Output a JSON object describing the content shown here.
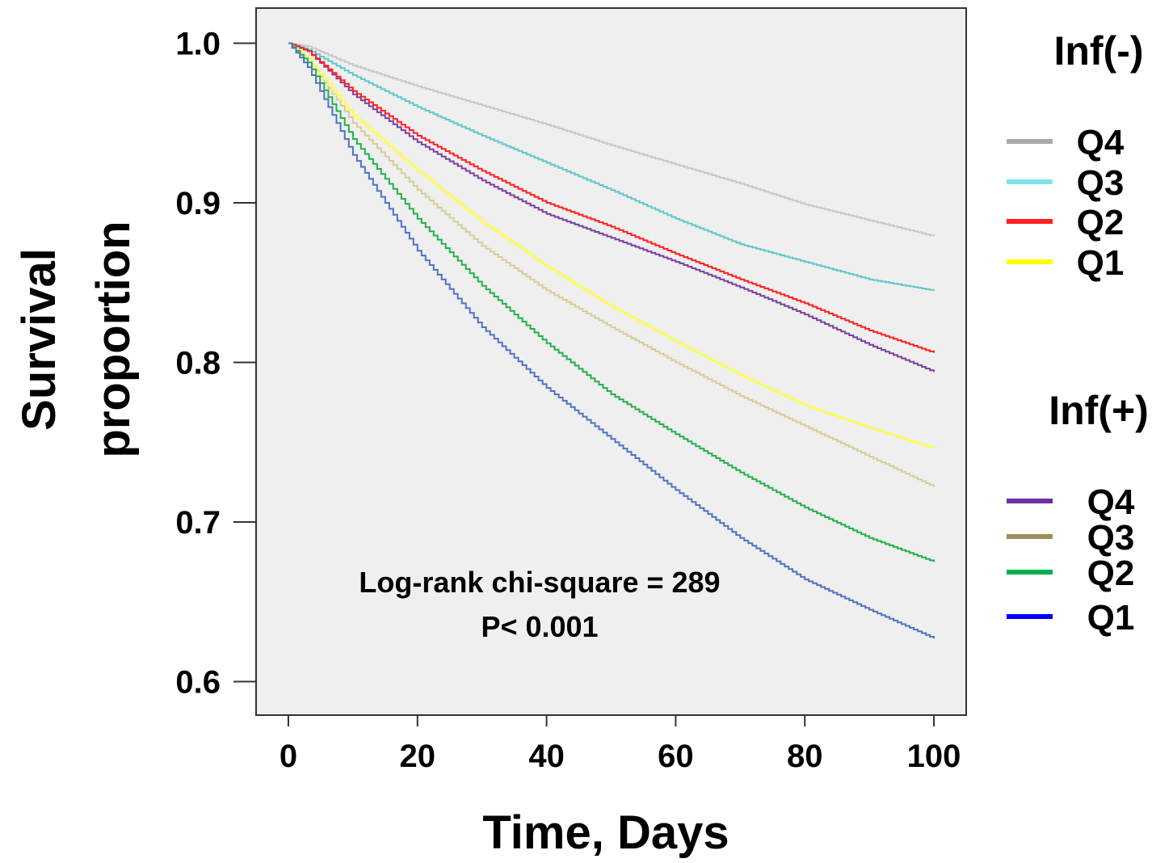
{
  "chart_data": {
    "type": "line",
    "step": true,
    "xlabel": "Time, Days",
    "ylabel_lines": [
      "Survival",
      "proportion"
    ],
    "xlim": [
      -5,
      105
    ],
    "ylim": [
      0.579,
      1.022
    ],
    "xticks": [
      0,
      20,
      40,
      60,
      80,
      100
    ],
    "yticks": [
      0.6,
      0.7,
      0.8,
      0.9,
      1.0
    ],
    "xtick_labels": [
      "0",
      "20",
      "40",
      "60",
      "80",
      "100"
    ],
    "ytick_labels": [
      "0.6",
      "0.7",
      "0.8",
      "0.9",
      "1.0"
    ],
    "annotation": [
      "Log-rank chi-square = 289",
      "P< 0.001"
    ],
    "grid": false,
    "background": "#efefef",
    "legend_groups": [
      {
        "title": "Inf(-)",
        "entries": [
          {
            "label": "Q4",
            "series": 0
          },
          {
            "label": "Q3",
            "series": 1
          },
          {
            "label": "Q2",
            "series": 2
          },
          {
            "label": "Q1",
            "series": 3
          }
        ]
      },
      {
        "title": "Inf(+)",
        "entries": [
          {
            "label": "Q4",
            "series": 4
          },
          {
            "label": "Q3",
            "series": 5
          },
          {
            "label": "Q2",
            "series": 6
          },
          {
            "label": "Q1",
            "series": 7
          }
        ]
      }
    ],
    "series": [
      {
        "group": "Inf(-)",
        "name": "Q4",
        "color": "#c8c8c8",
        "legend_color": "#a8a8a8",
        "x": [
          0,
          3,
          10,
          20,
          30,
          40,
          50,
          60,
          70,
          80,
          90,
          100
        ],
        "y": [
          1.0,
          0.998,
          0.986,
          0.973,
          0.961,
          0.949,
          0.936,
          0.924,
          0.912,
          0.899,
          0.889,
          0.879
        ]
      },
      {
        "group": "Inf(-)",
        "name": "Q3",
        "color": "#5ec8cc",
        "legend_color": "#7fe5ea",
        "x": [
          0,
          3,
          10,
          20,
          30,
          40,
          50,
          60,
          70,
          80,
          90,
          100
        ],
        "y": [
          1.0,
          0.996,
          0.98,
          0.96,
          0.942,
          0.925,
          0.908,
          0.89,
          0.874,
          0.863,
          0.852,
          0.845
        ]
      },
      {
        "group": "Inf(-)",
        "name": "Q2",
        "color": "#ff2020",
        "legend_color": "#ff2020",
        "x": [
          0,
          3,
          10,
          20,
          30,
          40,
          50,
          60,
          70,
          80,
          90,
          100
        ],
        "y": [
          1.0,
          0.995,
          0.97,
          0.942,
          0.92,
          0.9,
          0.885,
          0.868,
          0.852,
          0.837,
          0.82,
          0.806
        ]
      },
      {
        "group": "Inf(-)",
        "name": "Q1",
        "color": "#ffff40",
        "legend_color": "#ffff00",
        "x": [
          0,
          3,
          10,
          20,
          30,
          40,
          50,
          60,
          70,
          80,
          90,
          100
        ],
        "y": [
          1.0,
          0.99,
          0.955,
          0.92,
          0.888,
          0.86,
          0.835,
          0.813,
          0.792,
          0.773,
          0.759,
          0.746
        ]
      },
      {
        "group": "Inf(+)",
        "name": "Q4",
        "color": "#7b3fa0",
        "legend_color": "#7030a0",
        "x": [
          0,
          3,
          10,
          20,
          30,
          40,
          50,
          60,
          70,
          80,
          90,
          100
        ],
        "y": [
          1.0,
          0.995,
          0.968,
          0.938,
          0.914,
          0.893,
          0.878,
          0.863,
          0.847,
          0.83,
          0.811,
          0.794
        ]
      },
      {
        "group": "Inf(+)",
        "name": "Q3",
        "color": "#d8cc96",
        "legend_color": "#9e8e5a",
        "x": [
          0,
          3,
          10,
          20,
          30,
          40,
          50,
          60,
          70,
          80,
          90,
          100
        ],
        "y": [
          1.0,
          0.99,
          0.95,
          0.908,
          0.873,
          0.845,
          0.822,
          0.8,
          0.779,
          0.76,
          0.741,
          0.722
        ]
      },
      {
        "group": "Inf(+)",
        "name": "Q2",
        "color": "#22b04a",
        "legend_color": "#00b050",
        "x": [
          0,
          3,
          10,
          20,
          30,
          40,
          50,
          60,
          70,
          80,
          90,
          100
        ],
        "y": [
          1.0,
          0.988,
          0.94,
          0.89,
          0.848,
          0.812,
          0.78,
          0.755,
          0.731,
          0.709,
          0.69,
          0.675
        ]
      },
      {
        "group": "Inf(+)",
        "name": "Q1",
        "color": "#4f72c4",
        "legend_color": "#0000ff",
        "x": [
          0,
          3,
          10,
          20,
          30,
          40,
          50,
          60,
          70,
          80,
          90,
          100
        ],
        "y": [
          1.0,
          0.985,
          0.93,
          0.87,
          0.822,
          0.784,
          0.752,
          0.72,
          0.69,
          0.664,
          0.645,
          0.627
        ]
      }
    ]
  }
}
